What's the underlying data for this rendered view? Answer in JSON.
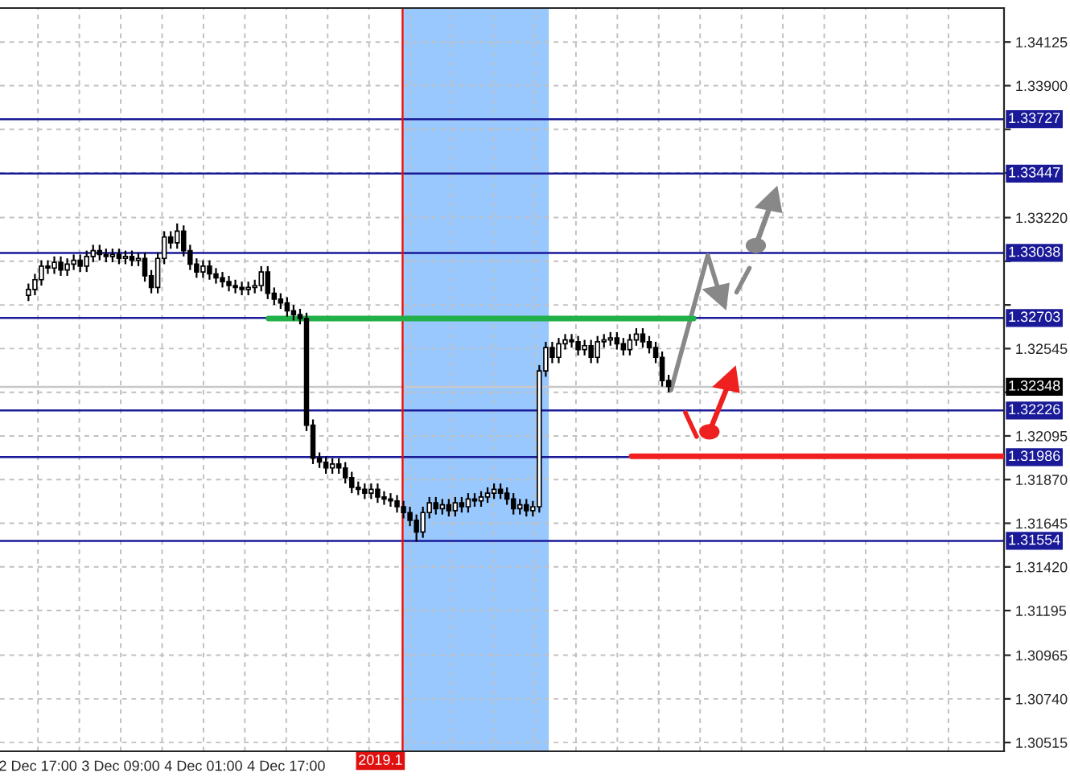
{
  "chart_data": {
    "type": "candlestick",
    "x": [
      "2019-12-02T15:10",
      "2019-12-02T16:25",
      "2019-12-02T17:40",
      "2019-12-02T18:55",
      "2019-12-02T20:10",
      "2019-12-02T21:25",
      "2019-12-02T22:40",
      "2019-12-02T23:55",
      "2019-12-03T01:10",
      "2019-12-03T02:25",
      "2019-12-03T03:40",
      "2019-12-03T04:55",
      "2019-12-03T06:10",
      "2019-12-03T07:25",
      "2019-12-03T08:40",
      "2019-12-03T09:55",
      "2019-12-03T11:10",
      "2019-12-03T12:25",
      "2019-12-03T13:40",
      "2019-12-03T14:55",
      "2019-12-03T16:10",
      "2019-12-03T17:25",
      "2019-12-03T18:40",
      "2019-12-03T19:55",
      "2019-12-03T21:10",
      "2019-12-03T22:25",
      "2019-12-03T23:40",
      "2019-12-04T00:55",
      "2019-12-04T02:10",
      "2019-12-04T03:25",
      "2019-12-04T04:40",
      "2019-12-04T05:55",
      "2019-12-04T07:10",
      "2019-12-04T08:25",
      "2019-12-04T09:40",
      "2019-12-04T10:55",
      "2019-12-04T12:10",
      "2019-12-04T13:25",
      "2019-12-04T14:40",
      "2019-12-04T15:55",
      "2019-12-04T17:10",
      "2019-12-04T18:25",
      "2019-12-04T19:40",
      "2019-12-04T20:55",
      "2019-12-04T22:10",
      "2019-12-04T23:25",
      "2019-12-05T00:40",
      "2019-12-05T01:55",
      "2019-12-05T03:10",
      "2019-12-05T04:25",
      "2019-12-05T05:40",
      "2019-12-05T06:55",
      "2019-12-05T08:10",
      "2019-12-05T09:25",
      "2019-12-05T10:40",
      "2019-12-05T11:55",
      "2019-12-05T13:10",
      "2019-12-05T14:25",
      "2019-12-05T15:40",
      "2019-12-05T16:55",
      "2019-12-05T18:10",
      "2019-12-05T19:25",
      "2019-12-05T20:40",
      "2019-12-05T21:55",
      "2019-12-05T23:10",
      "2019-12-06T00:25",
      "2019-12-06T01:40",
      "2019-12-06T02:55",
      "2019-12-06T04:10",
      "2019-12-06T05:25",
      "2019-12-06T06:40",
      "2019-12-06T07:55",
      "2019-12-06T09:10",
      "2019-12-06T10:25",
      "2019-12-06T11:40",
      "2019-12-06T12:55",
      "2019-12-06T14:10",
      "2019-12-06T15:25",
      "2019-12-06T16:40",
      "2019-12-06T17:55",
      "2019-12-06T19:10",
      "2019-12-06T20:25",
      "2019-12-06T21:40",
      "2019-12-06T22:55",
      "2019-12-07T00:10",
      "2019-12-07T01:25",
      "2019-12-07T02:40",
      "2019-12-07T03:55",
      "2019-12-07T05:10",
      "2019-12-07T06:25",
      "2019-12-07T07:40",
      "2019-12-07T08:55",
      "2019-12-07T10:10",
      "2019-12-07T11:25",
      "2019-12-07T12:40",
      "2019-12-07T13:55",
      "2019-12-07T15:10",
      "2019-12-07T16:25",
      "2019-12-07T17:40",
      "2019-12-07T18:55"
    ],
    "ohlc": [
      [
        1.3282,
        1.3288,
        1.3279,
        1.3285
      ],
      [
        1.3285,
        1.3293,
        1.3282,
        1.329
      ],
      [
        1.329,
        1.33,
        1.3287,
        1.3297
      ],
      [
        1.3297,
        1.33,
        1.3293,
        1.3296
      ],
      [
        1.3296,
        1.3302,
        1.3293,
        1.3299
      ],
      [
        1.3299,
        1.3302,
        1.3292,
        1.3295
      ],
      [
        1.3295,
        1.3301,
        1.3292,
        1.3298
      ],
      [
        1.3298,
        1.3303,
        1.3295,
        1.33
      ],
      [
        1.33,
        1.3303,
        1.3294,
        1.3297
      ],
      [
        1.3297,
        1.3305,
        1.3294,
        1.3302
      ],
      [
        1.3302,
        1.3308,
        1.3299,
        1.3305
      ],
      [
        1.3305,
        1.3308,
        1.33,
        1.3303
      ],
      [
        1.3303,
        1.3306,
        1.3299,
        1.3302
      ],
      [
        1.3302,
        1.3306,
        1.3299,
        1.3303
      ],
      [
        1.3303,
        1.3306,
        1.3298,
        1.3301
      ],
      [
        1.3301,
        1.3305,
        1.3298,
        1.3302
      ],
      [
        1.3302,
        1.3305,
        1.3297,
        1.33
      ],
      [
        1.33,
        1.3304,
        1.3297,
        1.3301
      ],
      [
        1.3301,
        1.3304,
        1.3289,
        1.3292
      ],
      [
        1.3292,
        1.3295,
        1.3283,
        1.3286
      ],
      [
        1.3286,
        1.3304,
        1.3283,
        1.3301
      ],
      [
        1.3301,
        1.3315,
        1.3298,
        1.3312
      ],
      [
        1.3312,
        1.3315,
        1.3306,
        1.3309
      ],
      [
        1.3309,
        1.3319,
        1.3306,
        1.3315
      ],
      [
        1.3315,
        1.3318,
        1.3302,
        1.3305
      ],
      [
        1.3305,
        1.3308,
        1.3295,
        1.3298
      ],
      [
        1.3298,
        1.3301,
        1.3291,
        1.3294
      ],
      [
        1.3294,
        1.33,
        1.3291,
        1.3297
      ],
      [
        1.3297,
        1.33,
        1.329,
        1.3293
      ],
      [
        1.3293,
        1.3296,
        1.3288,
        1.3291
      ],
      [
        1.3291,
        1.3294,
        1.3286,
        1.3289
      ],
      [
        1.3289,
        1.3292,
        1.3284,
        1.3287
      ],
      [
        1.3287,
        1.329,
        1.3283,
        1.3286
      ],
      [
        1.3286,
        1.3289,
        1.3282,
        1.3285
      ],
      [
        1.3285,
        1.3289,
        1.3282,
        1.3286
      ],
      [
        1.3286,
        1.329,
        1.3283,
        1.3287
      ],
      [
        1.3287,
        1.3297,
        1.3284,
        1.3294
      ],
      [
        1.3294,
        1.3297,
        1.328,
        1.3283
      ],
      [
        1.3283,
        1.3286,
        1.3277,
        1.328
      ],
      [
        1.328,
        1.3283,
        1.3275,
        1.3278
      ],
      [
        1.3278,
        1.3281,
        1.3271,
        1.3274
      ],
      [
        1.3274,
        1.3277,
        1.3269,
        1.3272
      ],
      [
        1.3272,
        1.3275,
        1.3267,
        1.327
      ],
      [
        1.327,
        1.3273,
        1.3212,
        1.3215
      ],
      [
        1.3215,
        1.3218,
        1.3195,
        1.3198
      ],
      [
        1.3198,
        1.3201,
        1.3193,
        1.3196
      ],
      [
        1.3196,
        1.3199,
        1.319,
        1.3193
      ],
      [
        1.3193,
        1.3198,
        1.319,
        1.3195
      ],
      [
        1.3195,
        1.3198,
        1.319,
        1.3193
      ],
      [
        1.3193,
        1.3196,
        1.3185,
        1.3188
      ],
      [
        1.3188,
        1.3191,
        1.318,
        1.3183
      ],
      [
        1.3183,
        1.3186,
        1.3179,
        1.3182
      ],
      [
        1.3182,
        1.3185,
        1.3177,
        1.318
      ],
      [
        1.318,
        1.3185,
        1.3177,
        1.3182
      ],
      [
        1.3182,
        1.3185,
        1.3175,
        1.3178
      ],
      [
        1.3178,
        1.3181,
        1.3174,
        1.3177
      ],
      [
        1.3177,
        1.318,
        1.3173,
        1.3176
      ],
      [
        1.3176,
        1.3179,
        1.317,
        1.3173
      ],
      [
        1.3173,
        1.3176,
        1.3167,
        1.317
      ],
      [
        1.317,
        1.3173,
        1.3163,
        1.3166
      ],
      [
        1.3166,
        1.3169,
        1.3155,
        1.316
      ],
      [
        1.316,
        1.3173,
        1.3157,
        1.317
      ],
      [
        1.317,
        1.3178,
        1.3167,
        1.3175
      ],
      [
        1.3175,
        1.3178,
        1.3169,
        1.3172
      ],
      [
        1.3172,
        1.3177,
        1.3169,
        1.3174
      ],
      [
        1.3174,
        1.3177,
        1.3168,
        1.3171
      ],
      [
        1.3171,
        1.3178,
        1.3168,
        1.3175
      ],
      [
        1.3175,
        1.3178,
        1.317,
        1.3173
      ],
      [
        1.3173,
        1.318,
        1.317,
        1.3177
      ],
      [
        1.3177,
        1.318,
        1.3173,
        1.3176
      ],
      [
        1.3176,
        1.3181,
        1.3173,
        1.3178
      ],
      [
        1.3178,
        1.3183,
        1.3175,
        1.318
      ],
      [
        1.318,
        1.3185,
        1.3177,
        1.3182
      ],
      [
        1.3182,
        1.3185,
        1.3177,
        1.318
      ],
      [
        1.318,
        1.3183,
        1.3174,
        1.3177
      ],
      [
        1.3177,
        1.318,
        1.3169,
        1.3172
      ],
      [
        1.3172,
        1.3177,
        1.3169,
        1.3174
      ],
      [
        1.3174,
        1.3177,
        1.3168,
        1.3171
      ],
      [
        1.3171,
        1.3176,
        1.3168,
        1.3173
      ],
      [
        1.3173,
        1.3246,
        1.317,
        1.3243
      ],
      [
        1.3243,
        1.3258,
        1.324,
        1.3255
      ],
      [
        1.3255,
        1.3258,
        1.3247,
        1.325
      ],
      [
        1.325,
        1.326,
        1.3247,
        1.3257
      ],
      [
        1.3257,
        1.3262,
        1.3254,
        1.3259
      ],
      [
        1.3259,
        1.3262,
        1.3255,
        1.3258
      ],
      [
        1.3258,
        1.3261,
        1.3251,
        1.3254
      ],
      [
        1.3254,
        1.3259,
        1.3251,
        1.3256
      ],
      [
        1.3256,
        1.3259,
        1.3247,
        1.325
      ],
      [
        1.325,
        1.3261,
        1.3247,
        1.3258
      ],
      [
        1.3258,
        1.3262,
        1.3255,
        1.3259
      ],
      [
        1.3259,
        1.3263,
        1.3256,
        1.326
      ],
      [
        1.326,
        1.3263,
        1.3254,
        1.3257
      ],
      [
        1.3257,
        1.326,
        1.3251,
        1.3254
      ],
      [
        1.3254,
        1.3262,
        1.3251,
        1.3259
      ],
      [
        1.3259,
        1.3265,
        1.3256,
        1.3262
      ],
      [
        1.3262,
        1.3265,
        1.3255,
        1.3258
      ],
      [
        1.3258,
        1.3261,
        1.3252,
        1.3255
      ],
      [
        1.3255,
        1.3258,
        1.3247,
        1.325
      ],
      [
        1.325,
        1.3253,
        1.3235,
        1.3238
      ],
      [
        1.3238,
        1.3241,
        1.3232,
        1.3235
      ]
    ],
    "series": [
      {
        "type": "line",
        "x": [
          "2019-12-04T13:35",
          "2019-12-07T23:45"
        ],
        "values": [
          1.327,
          1.327
        ],
        "color": "#22b04a"
      },
      {
        "type": "line",
        "x": [
          "2019-12-07T11:45",
          "2019-12-10T11:45"
        ],
        "values": [
          1.3199,
          1.3199
        ],
        "color": "#f02020"
      }
    ],
    "xlim": [
      "2019-12-02T09:40",
      "2019-12-10T11:45"
    ],
    "xticks": [
      {
        "value": "2019-12-02T17:00",
        "label": "2 Dec 17:00"
      },
      {
        "value": "2019-12-03T01:00",
        "label": null
      },
      {
        "value": "2019-12-03T09:00",
        "label": "3 Dec 09:00"
      },
      {
        "value": "2019-12-03T17:00",
        "label": null
      },
      {
        "value": "2019-12-04T01:00",
        "label": "4 Dec 01:00"
      },
      {
        "value": "2019-12-04T09:00",
        "label": null
      },
      {
        "value": "2019-12-04T17:00",
        "label": "4 Dec 17:00"
      },
      {
        "value": "2019-12-05T01:00",
        "label": null
      },
      {
        "value": "2019-12-05T09:00",
        "label": null
      },
      {
        "value": "2019-12-05T17:00",
        "label": null
      },
      {
        "value": "2019-12-06T01:00",
        "label": null
      },
      {
        "value": "2019-12-06T09:00",
        "label": null
      },
      {
        "value": "2019-12-06T17:00",
        "label": null
      },
      {
        "value": "2019-12-07T01:00",
        "label": null
      },
      {
        "value": "2019-12-07T09:00",
        "label": null
      },
      {
        "value": "2019-12-07T17:00",
        "label": null
      },
      {
        "value": "2019-12-08T01:00",
        "label": null
      },
      {
        "value": "2019-12-08T09:00",
        "label": null
      },
      {
        "value": "2019-12-08T17:00",
        "label": null
      },
      {
        "value": "2019-12-09T01:00",
        "label": null
      },
      {
        "value": "2019-12-09T09:00",
        "label": null
      },
      {
        "value": "2019-12-09T17:00",
        "label": null
      },
      {
        "value": "2019-12-10T01:00",
        "label": null
      }
    ],
    "ylim": [
      1.3047,
      1.343
    ],
    "yticks": [
      {
        "value": 1.34125,
        "label": "1.34125"
      },
      {
        "value": 1.339,
        "label": "1.33900"
      },
      {
        "value": 1.33675,
        "label": null
      },
      {
        "value": 1.3345,
        "label": null
      },
      {
        "value": 1.3322,
        "label": "1.33220"
      },
      {
        "value": 1.32995,
        "label": null
      },
      {
        "value": 1.3277,
        "label": null
      },
      {
        "value": 1.32545,
        "label": "1.32545"
      },
      {
        "value": 1.3232,
        "label": null
      },
      {
        "value": 1.32095,
        "label": "1.32095"
      },
      {
        "value": 1.3187,
        "label": "1.31870"
      },
      {
        "value": 1.31645,
        "label": "1.31645"
      },
      {
        "value": 1.3142,
        "label": "1.31420"
      },
      {
        "value": 1.31195,
        "label": "1.31195"
      },
      {
        "value": 1.30965,
        "label": "1.30965"
      },
      {
        "value": 1.3074,
        "label": "1.30740"
      },
      {
        "value": 1.30515,
        "label": "1.30515"
      }
    ],
    "ref_lines": [
      {
        "axis": "y",
        "value": 1.33727,
        "label": "1.33727",
        "color": "#1a1a99"
      },
      {
        "axis": "y",
        "value": 1.33447,
        "label": "1.33447",
        "color": "#1a1a99"
      },
      {
        "axis": "y",
        "value": 1.33038,
        "label": "1.33038",
        "color": "#1a1a99"
      },
      {
        "axis": "y",
        "value": 1.32703,
        "label": "1.32703",
        "color": "#1a1a99"
      },
      {
        "axis": "y",
        "value": 1.32348,
        "label": "1.32348",
        "color": "#c8c8c8"
      },
      {
        "axis": "y",
        "value": 1.32226,
        "label": "1.32226",
        "color": "#1a1a99"
      },
      {
        "axis": "y",
        "value": 1.31986,
        "label": "1.31986",
        "color": "#1a1a99"
      },
      {
        "axis": "y",
        "value": 1.31554,
        "label": "1.31554",
        "color": "#1a1a99"
      },
      {
        "axis": "x",
        "value": "2019-12-05T15:30",
        "label": "2019.1",
        "color": "#e01010"
      }
    ],
    "bands": [
      {
        "axis": "x",
        "from": "2019-12-05T15:45",
        "to": "2019-12-06T19:45",
        "color": "#99c8ff"
      }
    ],
    "grid": true
  }
}
